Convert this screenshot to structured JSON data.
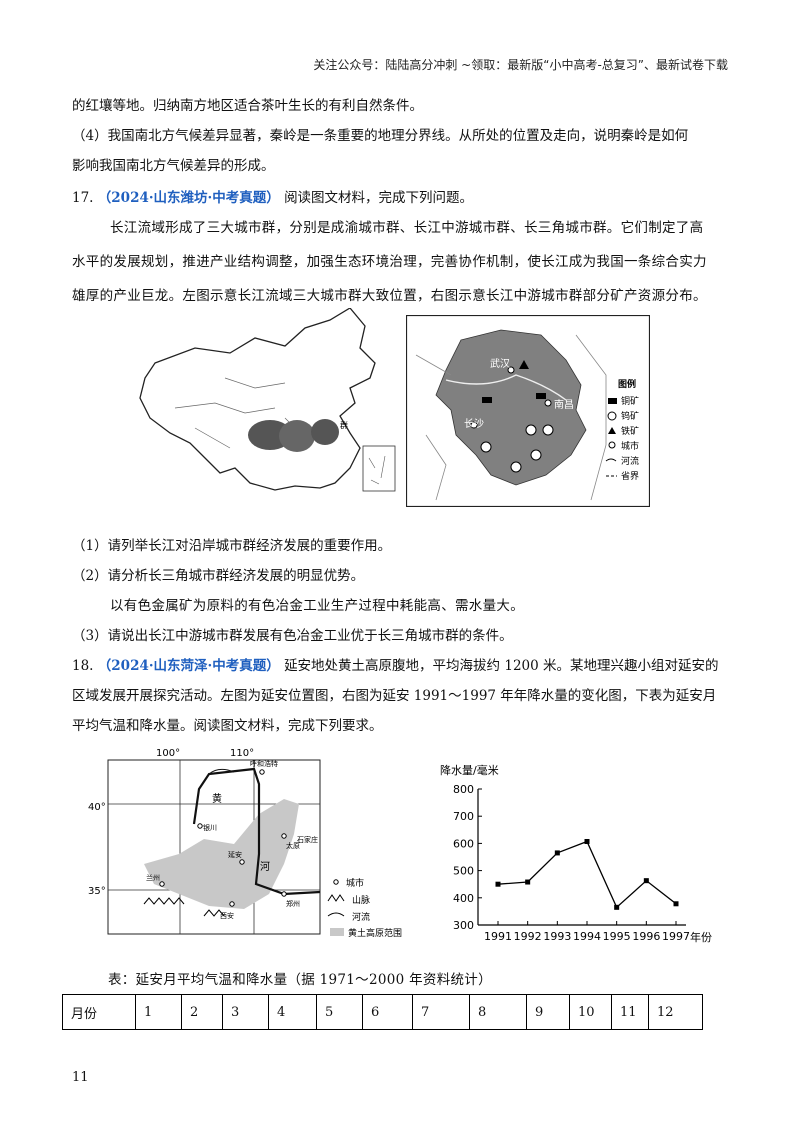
{
  "header": "关注公众号：陆陆高分冲刺  ~领取：最新版“小中高考-总复习”、最新试卷下载",
  "lines": {
    "l1": "的红壤等地。归纳南方地区适合茶叶生长的有利自然条件。",
    "l2": "（4）我国南北方气候差异显著，秦岭是一条重要的地理分界线。从所处的位置及走向，说明秦岭是如何",
    "l3": "影响我国南北方气候差异的形成。"
  },
  "q17": {
    "number": "17.",
    "source": "（2024·山东潍坊·中考真题）",
    "intro": "阅读图文材料，完成下列问题。",
    "material": [
      "长江流域形成了三大城市群，分别是成渝城市群、长江中游城市群、长三角城市群。它们制定了高",
      "水平的发展规划，推进产业结构调整，加强生态环境治理，完善协作机制，使长江成为我国一条综合实力",
      "雄厚的产业巨龙。左图示意长江流域三大城市群大致位置，右图示意长江中游城市群部分矿产资源分布。"
    ],
    "map_labels": {
      "wuhan": "武汉",
      "changsha": "长沙",
      "nanchang": "南昌",
      "legend_title": "图例",
      "group_label": "群"
    },
    "legend": [
      "铜矿",
      "钨矿",
      "铁矿",
      "城市",
      "河流",
      "省界"
    ],
    "q1": "（1）请列举长江对沿岸城市群经济发展的重要作用。",
    "q2": "（2）请分析长三角城市群经济发展的明显优势。",
    "note": "以有色金属矿为原料的有色冶金工业生产过程中耗能高、需水量大。",
    "q3": "（3）请说出长江中游城市群发展有色冶金工业优于长三角城市群的条件。"
  },
  "q18": {
    "number": "18.",
    "source": "（2024·山东菏泽·中考真题）",
    "intro": "延安地处黄土高原腹地，平均海拔约 1200 米。某地理兴趣小组对延安的",
    "line2": "区域发展开展探究活动。左图为延安位置图，右图为延安 1991～1997 年年降水量的变化图，下表为延安月",
    "line3": "平均气温和降水量。阅读图文材料，完成下列要求。",
    "map": {
      "lon1": "100°",
      "lon2": "110°",
      "lat1": "40°",
      "lat2": "35°",
      "labels": {
        "huhehaote": "呼和浩特",
        "huang": "黄",
        "he": "河",
        "yinchuan": "银川",
        "yanan": "延安",
        "taiyuan": "太原",
        "shijiazhuang": "石家庄",
        "lanzhou": "兰州",
        "xian": "西安",
        "zhengzhou": "郑州"
      },
      "legend": [
        "城市",
        "山脉",
        "河流",
        "黄土高原范围"
      ]
    },
    "table_caption": "表：延安月平均气温和降水量（据 1971～2000 年资料统计）",
    "table_header": "月份",
    "months": [
      "1",
      "2",
      "3",
      "4",
      "5",
      "6",
      "7",
      "8",
      "9",
      "10",
      "11",
      "12"
    ]
  },
  "chart_data": {
    "type": "line",
    "ylabel": "降水量/毫米",
    "xlabel": "年份",
    "x": [
      "1991",
      "1992",
      "1993",
      "1994",
      "1995",
      "1996",
      "1997"
    ],
    "values": [
      450,
      458,
      565,
      607,
      365,
      463,
      378
    ],
    "ylim": [
      300,
      800
    ],
    "yticks": [
      "300",
      "400",
      "500",
      "600",
      "700",
      "800"
    ]
  },
  "page_number": "11",
  "colors": {
    "source_blue": "#1f5fbf",
    "map_gray": "#8a8a8a",
    "plateau_gray": "#c8c8c8"
  }
}
